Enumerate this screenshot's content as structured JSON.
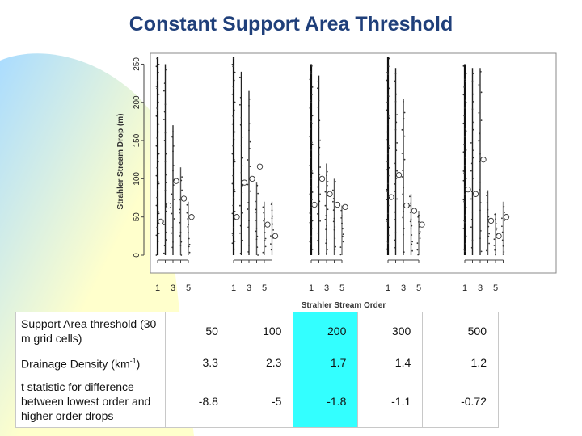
{
  "slide": {
    "title": "Constant Support Area Threshold"
  },
  "table": {
    "rows": [
      {
        "label": "Support Area threshold (30 m grid cells)",
        "values": [
          "50",
          "100",
          "200",
          "300",
          "500"
        ]
      },
      {
        "label_main": "Drainage Density (km",
        "label_sup": "-1",
        "label_end": ")",
        "values": [
          "3.3",
          "2.3",
          "1.7",
          "1.4",
          "1.2"
        ]
      },
      {
        "label": "t statistic for difference between lowest order and higher order drops",
        "values": [
          "-8.8",
          "-5",
          "-1.8",
          "-1.1",
          "-0.72"
        ]
      }
    ],
    "highlight_column": 2,
    "highlight_color": "#33ffff"
  },
  "chart_data": {
    "type": "scatter",
    "xlabel": "Strahler Stream Order",
    "ylabel": "Strahler Stream Drop (m)",
    "ylim": [
      0,
      260
    ],
    "yticks": [
      "0",
      "50",
      "100",
      "150",
      "200",
      "250"
    ],
    "panels": [
      {
        "xtick_labels": [
          "1",
          "3",
          "5"
        ],
        "orders": [
          {
            "order": 1,
            "mean": 44,
            "min": 0,
            "max": 260
          },
          {
            "order": 2,
            "mean": 65,
            "min": 0,
            "max": 250
          },
          {
            "order": 3,
            "mean": 97,
            "min": 0,
            "max": 170
          },
          {
            "order": 4,
            "mean": 74,
            "min": 0,
            "max": 115
          },
          {
            "order": 5,
            "mean": 50,
            "min": 0,
            "max": 70
          }
        ]
      },
      {
        "xtick_labels": [
          "1",
          "3",
          "5"
        ],
        "orders": [
          {
            "order": 1,
            "mean": 50,
            "min": 0,
            "max": 260
          },
          {
            "order": 2,
            "mean": 95,
            "min": 0,
            "max": 240
          },
          {
            "order": 3,
            "mean": 100,
            "min": 0,
            "max": 215
          },
          {
            "order": 4,
            "mean": 116,
            "min": 0,
            "max": 95
          },
          {
            "order": 5,
            "mean": 40,
            "min": 0,
            "max": 70
          },
          {
            "order": 6,
            "mean": 25,
            "min": 0,
            "max": 70
          }
        ]
      },
      {
        "xtick_labels": [
          "1",
          "3",
          "5"
        ],
        "orders": [
          {
            "order": 1,
            "mean": 66,
            "min": 0,
            "max": 250
          },
          {
            "order": 2,
            "mean": 100,
            "min": 0,
            "max": 235
          },
          {
            "order": 3,
            "mean": 80,
            "min": 0,
            "max": 120
          },
          {
            "order": 4,
            "mean": 66,
            "min": 0,
            "max": 100
          },
          {
            "order": 5,
            "mean": 63,
            "min": 0,
            "max": 65
          }
        ]
      },
      {
        "xtick_labels": [
          "1",
          "3",
          "5"
        ],
        "orders": [
          {
            "order": 1,
            "mean": 76,
            "min": 0,
            "max": 260
          },
          {
            "order": 2,
            "mean": 105,
            "min": 0,
            "max": 245
          },
          {
            "order": 3,
            "mean": 65,
            "min": 0,
            "max": 205
          },
          {
            "order": 4,
            "mean": 58,
            "min": 0,
            "max": 80
          },
          {
            "order": 5,
            "mean": 40,
            "min": 0,
            "max": 58
          }
        ]
      },
      {
        "xtick_labels": [
          "1",
          "3",
          "5"
        ],
        "orders": [
          {
            "order": 1,
            "mean": 86,
            "min": 0,
            "max": 250
          },
          {
            "order": 2,
            "mean": 80,
            "min": 0,
            "max": 245
          },
          {
            "order": 3,
            "mean": 125,
            "min": 0,
            "max": 245
          },
          {
            "order": 4,
            "mean": 45,
            "min": 0,
            "max": 85
          },
          {
            "order": 5,
            "mean": 25,
            "min": 0,
            "max": 55
          },
          {
            "order": 6,
            "mean": 50,
            "min": 0,
            "max": 70
          }
        ]
      }
    ]
  },
  "colors": {
    "title": "#1f3f7a",
    "highlight": "#33ffff",
    "wash_yellow": "#ffffcc",
    "wash_blue": "#aadcff"
  }
}
